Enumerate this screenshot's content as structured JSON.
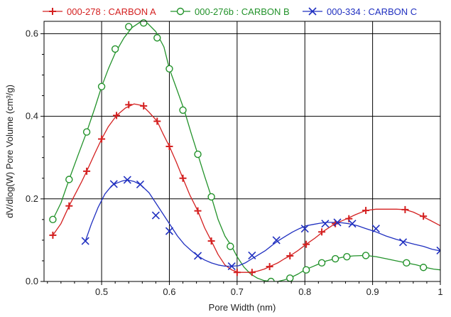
{
  "chart_data": {
    "type": "line",
    "xlabel": "Pore Width (nm)",
    "ylabel": "dV/dlog(W) Pore Volume (cm³/g)",
    "xlim": [
      0.415,
      1.0
    ],
    "ylim": [
      0.0,
      0.63
    ],
    "xticks": [
      0.5,
      0.6,
      0.7,
      0.8,
      0.9,
      1
    ],
    "xtick_labels": [
      "0.5",
      "0.6",
      "0.7",
      "0.8",
      "0.9",
      "1"
    ],
    "yticks": [
      0.0,
      0.2,
      0.4,
      0.6
    ],
    "ytick_labels": [
      "0.0",
      "0.2",
      "0.4",
      "0.6"
    ],
    "grid": true,
    "legend_position": "top",
    "series": [
      {
        "name": "000-278 : CARBON A",
        "color": "#d42020",
        "marker": "plus",
        "curve": [
          [
            0.428,
            0.112
          ],
          [
            0.44,
            0.14
          ],
          [
            0.452,
            0.183
          ],
          [
            0.47,
            0.24
          ],
          [
            0.478,
            0.267
          ],
          [
            0.49,
            0.31
          ],
          [
            0.5,
            0.345
          ],
          [
            0.51,
            0.375
          ],
          [
            0.522,
            0.402
          ],
          [
            0.535,
            0.42
          ],
          [
            0.548,
            0.43
          ],
          [
            0.56,
            0.426
          ],
          [
            0.57,
            0.41
          ],
          [
            0.582,
            0.388
          ],
          [
            0.59,
            0.36
          ],
          [
            0.6,
            0.327
          ],
          [
            0.61,
            0.29
          ],
          [
            0.62,
            0.25
          ],
          [
            0.63,
            0.21
          ],
          [
            0.642,
            0.171
          ],
          [
            0.652,
            0.13
          ],
          [
            0.662,
            0.098
          ],
          [
            0.672,
            0.065
          ],
          [
            0.682,
            0.04
          ],
          [
            0.692,
            0.028
          ],
          [
            0.702,
            0.022
          ],
          [
            0.712,
            0.022
          ],
          [
            0.72,
            0.022
          ],
          [
            0.73,
            0.025
          ],
          [
            0.74,
            0.03
          ],
          [
            0.748,
            0.036
          ],
          [
            0.76,
            0.045
          ],
          [
            0.77,
            0.055
          ],
          [
            0.778,
            0.062
          ],
          [
            0.79,
            0.075
          ],
          [
            0.802,
            0.09
          ],
          [
            0.815,
            0.105
          ],
          [
            0.828,
            0.122
          ],
          [
            0.84,
            0.135
          ],
          [
            0.852,
            0.145
          ],
          [
            0.862,
            0.152
          ],
          [
            0.875,
            0.162
          ],
          [
            0.89,
            0.172
          ],
          [
            0.905,
            0.175
          ],
          [
            0.92,
            0.175
          ],
          [
            0.935,
            0.175
          ],
          [
            0.948,
            0.174
          ],
          [
            0.96,
            0.168
          ],
          [
            0.973,
            0.158
          ],
          [
            0.985,
            0.148
          ],
          [
            1.0,
            0.135
          ]
        ],
        "markers": [
          [
            0.428,
            0.112
          ],
          [
            0.452,
            0.183
          ],
          [
            0.478,
            0.267
          ],
          [
            0.5,
            0.345
          ],
          [
            0.522,
            0.402
          ],
          [
            0.54,
            0.428
          ],
          [
            0.562,
            0.425
          ],
          [
            0.582,
            0.388
          ],
          [
            0.6,
            0.327
          ],
          [
            0.62,
            0.25
          ],
          [
            0.642,
            0.171
          ],
          [
            0.662,
            0.098
          ],
          [
            0.7,
            0.022
          ],
          [
            0.722,
            0.022
          ],
          [
            0.748,
            0.036
          ],
          [
            0.778,
            0.062
          ],
          [
            0.802,
            0.09
          ],
          [
            0.825,
            0.12
          ],
          [
            0.845,
            0.14
          ],
          [
            0.865,
            0.152
          ],
          [
            0.89,
            0.172
          ],
          [
            0.948,
            0.174
          ],
          [
            0.975,
            0.158
          ]
        ]
      },
      {
        "name": "000-276b : CARBON B",
        "color": "#22922a",
        "marker": "circle",
        "curve": [
          [
            0.428,
            0.15
          ],
          [
            0.44,
            0.19
          ],
          [
            0.452,
            0.247
          ],
          [
            0.465,
            0.305
          ],
          [
            0.478,
            0.362
          ],
          [
            0.49,
            0.42
          ],
          [
            0.5,
            0.472
          ],
          [
            0.51,
            0.515
          ],
          [
            0.52,
            0.553
          ],
          [
            0.533,
            0.59
          ],
          [
            0.545,
            0.615
          ],
          [
            0.556,
            0.627
          ],
          [
            0.568,
            0.625
          ],
          [
            0.58,
            0.605
          ],
          [
            0.592,
            0.568
          ],
          [
            0.6,
            0.515
          ],
          [
            0.61,
            0.47
          ],
          [
            0.622,
            0.415
          ],
          [
            0.632,
            0.36
          ],
          [
            0.642,
            0.308
          ],
          [
            0.652,
            0.255
          ],
          [
            0.662,
            0.205
          ],
          [
            0.672,
            0.15
          ],
          [
            0.682,
            0.11
          ],
          [
            0.692,
            0.085
          ],
          [
            0.7,
            0.06
          ],
          [
            0.71,
            0.035
          ],
          [
            0.72,
            0.018
          ],
          [
            0.73,
            0.008
          ],
          [
            0.74,
            0.002
          ],
          [
            0.75,
            0.0
          ],
          [
            0.76,
            0.0
          ],
          [
            0.77,
            0.004
          ],
          [
            0.78,
            0.01
          ],
          [
            0.79,
            0.018
          ],
          [
            0.8,
            0.028
          ],
          [
            0.81,
            0.035
          ],
          [
            0.82,
            0.042
          ],
          [
            0.832,
            0.05
          ],
          [
            0.845,
            0.055
          ],
          [
            0.86,
            0.06
          ],
          [
            0.872,
            0.062
          ],
          [
            0.89,
            0.063
          ],
          [
            0.905,
            0.06
          ],
          [
            0.92,
            0.055
          ],
          [
            0.935,
            0.05
          ],
          [
            0.95,
            0.045
          ],
          [
            0.965,
            0.04
          ],
          [
            0.978,
            0.034
          ],
          [
            0.99,
            0.03
          ],
          [
            1.0,
            0.028
          ]
        ],
        "markers": [
          [
            0.428,
            0.15
          ],
          [
            0.452,
            0.247
          ],
          [
            0.478,
            0.362
          ],
          [
            0.5,
            0.472
          ],
          [
            0.52,
            0.563
          ],
          [
            0.54,
            0.617
          ],
          [
            0.562,
            0.626
          ],
          [
            0.582,
            0.59
          ],
          [
            0.6,
            0.515
          ],
          [
            0.62,
            0.415
          ],
          [
            0.642,
            0.308
          ],
          [
            0.662,
            0.205
          ],
          [
            0.69,
            0.085
          ],
          [
            0.75,
            0.0
          ],
          [
            0.778,
            0.008
          ],
          [
            0.802,
            0.028
          ],
          [
            0.825,
            0.045
          ],
          [
            0.845,
            0.055
          ],
          [
            0.862,
            0.06
          ],
          [
            0.89,
            0.063
          ],
          [
            0.95,
            0.045
          ],
          [
            0.975,
            0.034
          ]
        ]
      },
      {
        "name": "000-334 : CARBON C",
        "color": "#2030c0",
        "marker": "x",
        "curve": [
          [
            0.476,
            0.098
          ],
          [
            0.485,
            0.14
          ],
          [
            0.495,
            0.18
          ],
          [
            0.505,
            0.212
          ],
          [
            0.515,
            0.232
          ],
          [
            0.522,
            0.238
          ],
          [
            0.53,
            0.243
          ],
          [
            0.538,
            0.246
          ],
          [
            0.548,
            0.242
          ],
          [
            0.557,
            0.235
          ],
          [
            0.57,
            0.215
          ],
          [
            0.58,
            0.19
          ],
          [
            0.592,
            0.16
          ],
          [
            0.602,
            0.135
          ],
          [
            0.612,
            0.11
          ],
          [
            0.622,
            0.09
          ],
          [
            0.632,
            0.075
          ],
          [
            0.642,
            0.062
          ],
          [
            0.652,
            0.052
          ],
          [
            0.662,
            0.045
          ],
          [
            0.672,
            0.04
          ],
          [
            0.682,
            0.037
          ],
          [
            0.692,
            0.037
          ],
          [
            0.702,
            0.038
          ],
          [
            0.712,
            0.045
          ],
          [
            0.722,
            0.055
          ],
          [
            0.732,
            0.065
          ],
          [
            0.742,
            0.075
          ],
          [
            0.752,
            0.088
          ],
          [
            0.762,
            0.1
          ],
          [
            0.772,
            0.11
          ],
          [
            0.782,
            0.12
          ],
          [
            0.792,
            0.128
          ],
          [
            0.802,
            0.135
          ],
          [
            0.812,
            0.138
          ],
          [
            0.822,
            0.141
          ],
          [
            0.832,
            0.143
          ],
          [
            0.842,
            0.143
          ],
          [
            0.855,
            0.142
          ],
          [
            0.865,
            0.14
          ],
          [
            0.878,
            0.135
          ],
          [
            0.89,
            0.128
          ],
          [
            0.905,
            0.12
          ],
          [
            0.92,
            0.11
          ],
          [
            0.935,
            0.102
          ],
          [
            0.95,
            0.095
          ],
          [
            0.962,
            0.09
          ],
          [
            0.975,
            0.085
          ],
          [
            0.988,
            0.078
          ],
          [
            1.0,
            0.074
          ]
        ],
        "markers": [
          [
            0.476,
            0.098
          ],
          [
            0.518,
            0.236
          ],
          [
            0.538,
            0.246
          ],
          [
            0.557,
            0.235
          ],
          [
            0.58,
            0.16
          ],
          [
            0.6,
            0.122
          ],
          [
            0.642,
            0.062
          ],
          [
            0.692,
            0.037
          ],
          [
            0.722,
            0.063
          ],
          [
            0.758,
            0.1
          ],
          [
            0.8,
            0.128
          ],
          [
            0.83,
            0.14
          ],
          [
            0.848,
            0.143
          ],
          [
            0.87,
            0.14
          ],
          [
            0.905,
            0.128
          ],
          [
            0.945,
            0.095
          ],
          [
            1.0,
            0.075
          ]
        ]
      }
    ]
  }
}
